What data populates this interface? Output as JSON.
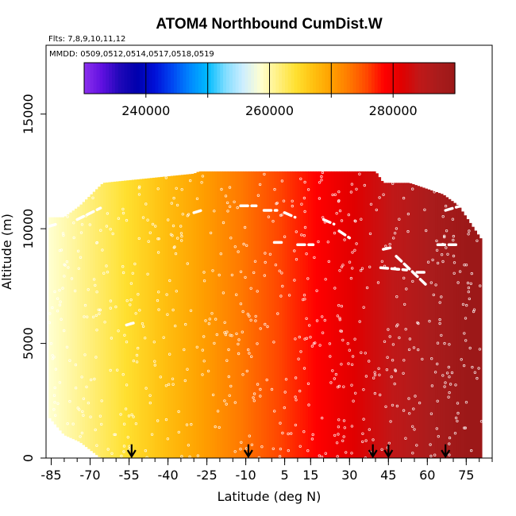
{
  "chart_data": {
    "type": "heatmap",
    "title": "ATOM4 Northbound CumDist.W",
    "subtitle_flights": "Flts: 7,8,9,10,11,12",
    "subtitle_dates": "MMDD: 0509,0512,0514,0517,0518,0519",
    "xlabel": "Latitude (deg N)",
    "ylabel": "Altitude (m)",
    "xlim": [
      -87,
      85
    ],
    "ylim": [
      0,
      18000
    ],
    "x_ticks": [
      -85,
      -70,
      -55,
      -40,
      -25,
      -10,
      5,
      15,
      30,
      45,
      60,
      75
    ],
    "y_ticks": [
      0,
      5000,
      10000,
      15000
    ],
    "x_minor_step": 5,
    "colorbar": {
      "range": [
        230000,
        290000
      ],
      "breaks": [
        240000,
        250000,
        260000,
        270000,
        280000
      ],
      "tick_labels": [
        240000,
        260000,
        280000
      ],
      "colors": [
        "#8c30ee",
        "#6010e0",
        "#2008b8",
        "#0000ad",
        "#0010d8",
        "#0048f2",
        "#0088ff",
        "#00bbff",
        "#80ddff",
        "#cdeeff",
        "#ffffd0",
        "#fff080",
        "#ffe030",
        "#ffc010",
        "#ffa000",
        "#ff7a00",
        "#ff4800",
        "#ff0000",
        "#e00000",
        "#c01818",
        "#aa1c1c",
        "#9c1818"
      ]
    },
    "field": {
      "lat_min": -86,
      "lat_max": 81,
      "value_at_lat_min": 258500,
      "value_at_lat_max": 291000,
      "ceiling_profile": [
        [
          -86,
          10500
        ],
        [
          -80,
          10500
        ],
        [
          -74,
          11000
        ],
        [
          -65,
          12000
        ],
        [
          -30,
          12400
        ],
        [
          -28,
          12500
        ],
        [
          40,
          12500
        ],
        [
          43,
          12000
        ],
        [
          53,
          12000
        ],
        [
          66,
          11500
        ],
        [
          72,
          11000
        ],
        [
          78,
          10000
        ],
        [
          81,
          9500
        ]
      ],
      "floor_profile": [
        [
          -86,
          1800
        ],
        [
          -80,
          1000
        ],
        [
          -74,
          700
        ],
        [
          -66,
          0
        ],
        [
          80,
          0
        ]
      ]
    },
    "flight_arrows_lat": [
      -54,
      -9,
      39,
      45,
      67
    ],
    "flight_arrow_top": 600,
    "flight_track_lines": [
      [
        [
          -86,
          10100
        ],
        [
          -83,
          10200
        ]
      ],
      [
        [
          -75,
          10400
        ],
        [
          -66,
          10900
        ]
      ],
      [
        [
          -30,
          10700
        ],
        [
          -27,
          10800
        ]
      ],
      [
        [
          -12,
          11000
        ],
        [
          -6,
          11000
        ]
      ],
      [
        [
          -3,
          10800
        ],
        [
          2,
          10800
        ]
      ],
      [
        [
          5,
          10700
        ],
        [
          9,
          10500
        ]
      ],
      [
        [
          20,
          10400
        ],
        [
          24,
          10200
        ]
      ],
      [
        [
          26,
          9900
        ],
        [
          30,
          9600
        ]
      ],
      [
        [
          1,
          9400
        ],
        [
          5,
          9400
        ]
      ],
      [
        [
          10,
          9300
        ],
        [
          16,
          9300
        ]
      ],
      [
        [
          43,
          9100
        ],
        [
          47,
          9200
        ]
      ],
      [
        [
          48,
          8800
        ],
        [
          60,
          7500
        ]
      ],
      [
        [
          42,
          8300
        ],
        [
          52,
          8200
        ]
      ],
      [
        [
          56,
          8100
        ],
        [
          60,
          8100
        ]
      ],
      [
        [
          64,
          9300
        ],
        [
          71,
          9300
        ]
      ],
      [
        [
          67,
          10800
        ],
        [
          73,
          11000
        ]
      ],
      [
        [
          -56,
          5800
        ],
        [
          -53,
          5900
        ]
      ]
    ],
    "legend": "none",
    "grid": false
  }
}
